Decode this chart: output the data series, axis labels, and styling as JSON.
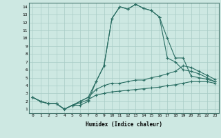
{
  "xlabel": "Humidex (Indice chaleur)",
  "xlim": [
    -0.5,
    23.5
  ],
  "ylim": [
    0.5,
    14.5
  ],
  "xticks": [
    0,
    1,
    2,
    3,
    4,
    5,
    6,
    7,
    8,
    9,
    10,
    11,
    12,
    13,
    14,
    15,
    16,
    17,
    18,
    19,
    20,
    21,
    22,
    23
  ],
  "yticks": [
    1,
    2,
    3,
    4,
    5,
    6,
    7,
    8,
    9,
    10,
    11,
    12,
    13,
    14
  ],
  "line_color": "#2a6e63",
  "background_color": "#cde8e2",
  "grid_color": "#a8ccc6",
  "s1": [
    2.5,
    2.0,
    1.7,
    1.7,
    1.0,
    1.5,
    2.0,
    2.5,
    4.5,
    6.5,
    12.5,
    14.0,
    13.7,
    14.3,
    13.8,
    13.5,
    12.7,
    10.0,
    7.5,
    7.5,
    5.2,
    5.0,
    4.8,
    4.5
  ],
  "s2": [
    2.5,
    2.0,
    1.7,
    1.7,
    1.0,
    1.5,
    1.5,
    2.0,
    4.5,
    6.5,
    12.5,
    14.0,
    13.7,
    14.3,
    13.8,
    13.5,
    12.7,
    7.5,
    7.0,
    6.0,
    5.8,
    5.5,
    5.0,
    4.5
  ],
  "s3": [
    2.5,
    2.0,
    1.7,
    1.7,
    1.0,
    1.5,
    2.0,
    2.5,
    3.5,
    4.0,
    4.3,
    4.3,
    4.5,
    4.7,
    4.7,
    5.0,
    5.2,
    5.5,
    5.8,
    6.5,
    6.3,
    5.8,
    5.3,
    4.8
  ],
  "s4": [
    2.5,
    2.0,
    1.7,
    1.7,
    1.0,
    1.5,
    1.8,
    2.2,
    2.8,
    3.0,
    3.2,
    3.3,
    3.4,
    3.5,
    3.6,
    3.7,
    3.8,
    4.0,
    4.1,
    4.3,
    4.5,
    4.5,
    4.5,
    4.3
  ]
}
